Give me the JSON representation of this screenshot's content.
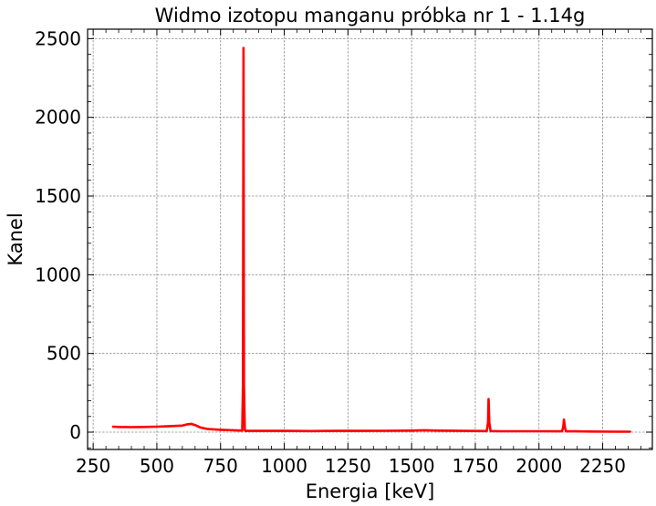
{
  "chart_data": {
    "type": "line",
    "title": "Widmo izotopu manganu próbka nr 1 - 1.14g",
    "xlabel": "Energia [keV]",
    "ylabel": "Kanel",
    "xlim": [
      228,
      2445
    ],
    "ylim": [
      -110,
      2560
    ],
    "xticks": [
      250,
      500,
      750,
      1000,
      1250,
      1500,
      1750,
      2000,
      2250
    ],
    "yticks": [
      0,
      500,
      1000,
      1500,
      2000,
      2500
    ],
    "xtick_labels": [
      "250",
      "500",
      "750",
      "1000",
      "1250",
      "1500",
      "1750",
      "2000",
      "2250"
    ],
    "ytick_labels": [
      "0",
      "500",
      "1000",
      "1500",
      "2000",
      "2500"
    ],
    "grid": true,
    "series": [
      {
        "color": "#ff0000",
        "x": [
          325,
          350,
          400,
          450,
          500,
          550,
          600,
          620,
          635,
          650,
          670,
          700,
          750,
          800,
          835,
          838,
          840,
          842,
          845,
          848,
          860,
          900,
          1000,
          1100,
          1200,
          1300,
          1400,
          1500,
          1550,
          1600,
          1700,
          1795,
          1800,
          1802,
          1805,
          1810,
          1850,
          1900,
          2000,
          2090,
          2095,
          2098,
          2102,
          2106,
          2150,
          2200,
          2300,
          2360
        ],
        "y": [
          35,
          33,
          32,
          33,
          35,
          38,
          42,
          50,
          53,
          45,
          30,
          20,
          15,
          12,
          10,
          300,
          2440,
          300,
          12,
          8,
          8,
          8,
          8,
          7,
          8,
          8,
          9,
          10,
          12,
          10,
          8,
          7,
          60,
          210,
          60,
          7,
          6,
          6,
          6,
          5,
          30,
          80,
          30,
          5,
          5,
          4,
          3,
          3
        ]
      }
    ]
  }
}
